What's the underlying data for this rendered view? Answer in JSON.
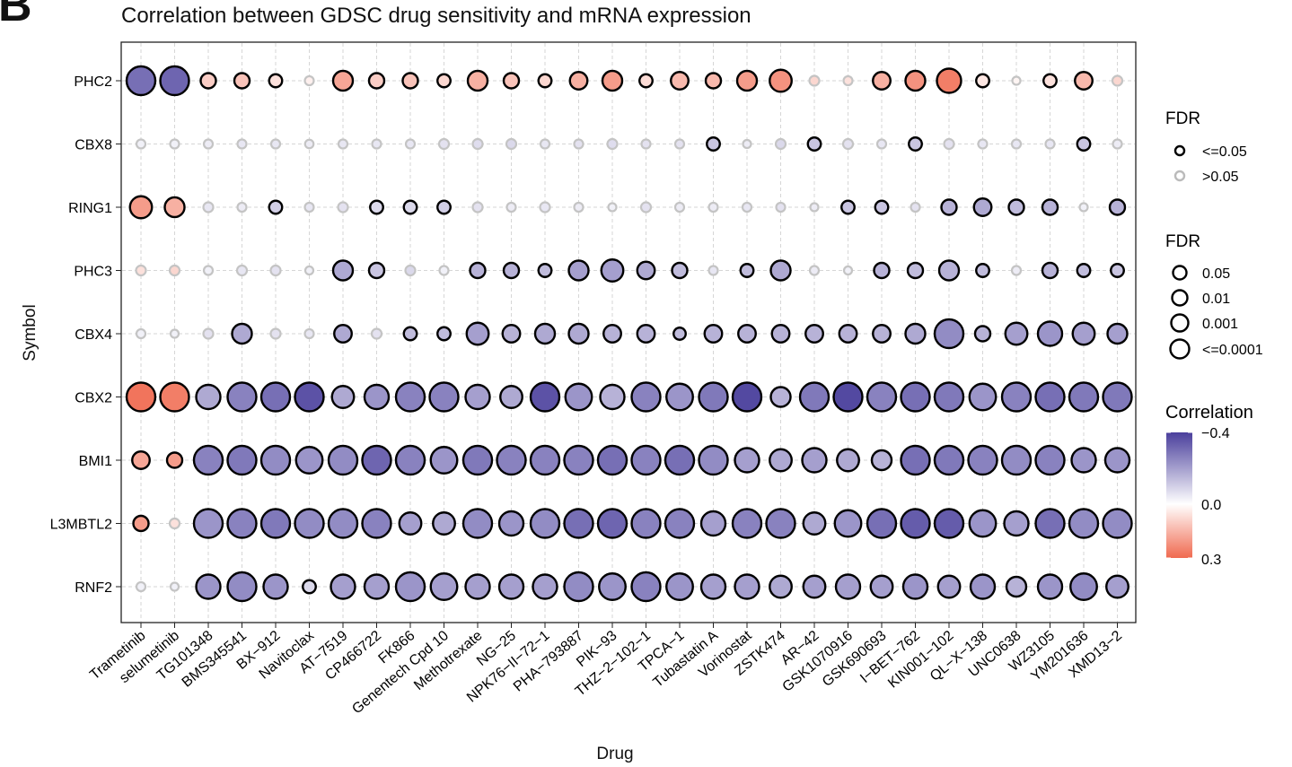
{
  "panel_letter": "B",
  "chart_data": {
    "type": "dot",
    "title": "Correlation between GDSC drug sensitivity and mRNA expression",
    "xlabel": "Drug",
    "ylabel": "Symbol",
    "drugs": [
      "Trametinib",
      "selumetinib",
      "TG101348",
      "BMS345541",
      "BX−912",
      "Navitoclax",
      "AT−7519",
      "CP466722",
      "FK866",
      "Genentech Cpd 10",
      "Methotrexate",
      "NG−25",
      "NPK76−II−72−1",
      "PHA−793887",
      "PIK−93",
      "THZ−2−102−1",
      "TPCA−1",
      "Tubastatin A",
      "Vorinostat",
      "ZSTK474",
      "AR−42",
      "GSK1070916",
      "GSK690693",
      "I−BET−762",
      "KIN001−102",
      "QL−X−138",
      "UNC0638",
      "WZ3105",
      "YM201636",
      "XMD13−2"
    ],
    "symbols": [
      "PHC2",
      "CBX8",
      "RING1",
      "PHC3",
      "CBX4",
      "CBX2",
      "BMI1",
      "L3MBTL2",
      "RNF2"
    ],
    "legend_fdr_color": {
      "title": "FDR",
      "items": [
        "<=0.05",
        ">0.05"
      ]
    },
    "legend_fdr_size": {
      "title": "FDR",
      "items": [
        "0.05",
        "0.01",
        "0.001",
        "<=0.0001"
      ]
    },
    "legend_corr": {
      "title": "Correlation",
      "ticks": [
        "−0.4",
        "0.0",
        "0.3"
      ],
      "low_color": "#4a3f9c",
      "mid_color": "#ffffff",
      "high_color": "#f06a50"
    },
    "cor": {
      "PHC2": [
        -0.3,
        -0.32,
        0.1,
        0.12,
        0.06,
        0.03,
        0.18,
        0.1,
        0.12,
        0.08,
        0.16,
        0.12,
        0.08,
        0.16,
        0.2,
        0.07,
        0.14,
        0.14,
        0.2,
        0.22,
        0.08,
        0.06,
        0.16,
        0.22,
        0.26,
        0.05,
        0.02,
        0.06,
        0.14,
        0.08
      ],
      "CBX8": [
        -0.03,
        -0.03,
        -0.04,
        -0.05,
        -0.05,
        -0.04,
        -0.05,
        -0.05,
        -0.05,
        -0.06,
        -0.07,
        -0.08,
        -0.05,
        -0.06,
        -0.07,
        -0.06,
        -0.06,
        -0.12,
        -0.04,
        -0.08,
        -0.12,
        -0.06,
        -0.05,
        -0.12,
        -0.06,
        -0.05,
        -0.05,
        -0.05,
        -0.12,
        -0.04
      ],
      "RING1": [
        0.2,
        0.16,
        -0.05,
        -0.04,
        -0.1,
        -0.05,
        -0.06,
        -0.08,
        -0.08,
        -0.1,
        -0.06,
        -0.04,
        -0.05,
        -0.04,
        -0.03,
        -0.06,
        -0.04,
        -0.04,
        -0.05,
        -0.06,
        -0.04,
        -0.12,
        -0.12,
        -0.06,
        -0.16,
        -0.18,
        -0.14,
        -0.16,
        -0.03,
        -0.16
      ],
      "PHC3": [
        0.06,
        0.08,
        -0.03,
        -0.05,
        -0.06,
        -0.03,
        -0.18,
        -0.12,
        -0.08,
        -0.03,
        -0.16,
        -0.16,
        -0.14,
        -0.2,
        -0.2,
        -0.18,
        -0.14,
        -0.05,
        -0.14,
        -0.18,
        -0.04,
        -0.03,
        -0.16,
        -0.14,
        -0.16,
        -0.14,
        -0.04,
        -0.16,
        -0.14,
        -0.12
      ],
      "CBX4": [
        -0.03,
        -0.03,
        -0.06,
        -0.18,
        -0.06,
        -0.05,
        -0.18,
        -0.06,
        -0.14,
        -0.14,
        -0.2,
        -0.16,
        -0.18,
        -0.18,
        -0.16,
        -0.16,
        -0.14,
        -0.16,
        -0.16,
        -0.16,
        -0.16,
        -0.16,
        -0.16,
        -0.18,
        -0.24,
        -0.16,
        -0.2,
        -0.22,
        -0.2,
        -0.2
      ],
      "CBX2": [
        0.28,
        0.26,
        -0.18,
        -0.26,
        -0.3,
        -0.36,
        -0.18,
        -0.22,
        -0.26,
        -0.26,
        -0.2,
        -0.18,
        -0.36,
        -0.22,
        -0.16,
        -0.26,
        -0.22,
        -0.28,
        -0.38,
        -0.16,
        -0.28,
        -0.38,
        -0.26,
        -0.3,
        -0.28,
        -0.22,
        -0.26,
        -0.3,
        -0.28,
        -0.28
      ],
      "BMI1": [
        0.18,
        0.2,
        -0.26,
        -0.28,
        -0.24,
        -0.22,
        -0.24,
        -0.32,
        -0.26,
        -0.22,
        -0.28,
        -0.26,
        -0.26,
        -0.26,
        -0.3,
        -0.26,
        -0.3,
        -0.24,
        -0.2,
        -0.18,
        -0.2,
        -0.18,
        -0.16,
        -0.3,
        -0.28,
        -0.26,
        -0.24,
        -0.26,
        -0.22,
        -0.22
      ],
      "L3MBTL2": [
        0.2,
        0.06,
        -0.22,
        -0.26,
        -0.28,
        -0.24,
        -0.24,
        -0.26,
        -0.2,
        -0.18,
        -0.24,
        -0.22,
        -0.24,
        -0.3,
        -0.32,
        -0.26,
        -0.26,
        -0.2,
        -0.26,
        -0.26,
        -0.18,
        -0.22,
        -0.3,
        -0.34,
        -0.34,
        -0.22,
        -0.2,
        -0.3,
        -0.24,
        -0.24
      ],
      "RNF2": [
        -0.03,
        -0.03,
        -0.22,
        -0.24,
        -0.22,
        -0.08,
        -0.2,
        -0.2,
        -0.22,
        -0.2,
        -0.2,
        -0.2,
        -0.2,
        -0.24,
        -0.22,
        -0.26,
        -0.22,
        -0.2,
        -0.2,
        -0.18,
        -0.2,
        -0.2,
        -0.2,
        -0.22,
        -0.2,
        -0.22,
        -0.16,
        -0.22,
        -0.24,
        -0.2
      ]
    },
    "neglog10_fdr": {
      "PHC2": [
        5,
        5,
        2,
        2,
        1.5,
        0.6,
        3,
        2,
        2,
        1.5,
        3,
        2,
        1.5,
        2.5,
        3,
        1.5,
        2.5,
        2,
        3,
        3.5,
        0.8,
        0.6,
        2.5,
        3,
        4,
        1.5,
        0.4,
        1.5,
        2.5,
        0.8
      ],
      "CBX8": [
        0.6,
        0.6,
        0.6,
        0.6,
        0.6,
        0.5,
        0.6,
        0.6,
        0.6,
        0.8,
        0.8,
        0.8,
        0.6,
        0.6,
        0.8,
        0.6,
        0.6,
        1.5,
        0.4,
        0.8,
        1.5,
        0.8,
        0.6,
        1.5,
        0.8,
        0.6,
        0.6,
        0.6,
        1.5,
        0.6
      ],
      "RING1": [
        3.5,
        3,
        0.8,
        0.6,
        1.5,
        0.6,
        0.8,
        1.5,
        1.5,
        1.5,
        0.8,
        0.6,
        0.8,
        0.6,
        0.4,
        0.8,
        0.6,
        0.6,
        0.6,
        0.6,
        0.4,
        1.5,
        1.5,
        0.6,
        2,
        2.5,
        2,
        2,
        0.4,
        2
      ],
      "PHC3": [
        0.8,
        0.8,
        0.6,
        0.8,
        0.8,
        0.4,
        3,
        2,
        0.8,
        0.6,
        2,
        2,
        1.5,
        3,
        3.5,
        2.5,
        2,
        0.6,
        1.5,
        3,
        0.6,
        0.4,
        2,
        2,
        3,
        1.5,
        0.6,
        2,
        1.5,
        1.5
      ],
      "CBX4": [
        0.6,
        0.4,
        0.8,
        3,
        0.8,
        0.6,
        2.5,
        0.8,
        1.5,
        1.5,
        3.5,
        2.5,
        3,
        3,
        2.5,
        2.5,
        1.3,
        2.5,
        2.5,
        2.5,
        2.5,
        2.5,
        2.5,
        3,
        5,
        2,
        3.5,
        4,
        3.5,
        3
      ],
      "CBX2": [
        5,
        5,
        4,
        5,
        5,
        5,
        3.5,
        4,
        5,
        5,
        4,
        3.5,
        5,
        4.5,
        4,
        5,
        4.5,
        5,
        5,
        3,
        5,
        5,
        5,
        5,
        5,
        4.5,
        5,
        5,
        5,
        5
      ],
      "BMI1": [
        2.5,
        2,
        5,
        5,
        5,
        4.5,
        5,
        5,
        5,
        4.5,
        5,
        5,
        5,
        5,
        5,
        5,
        5,
        5,
        4,
        3.5,
        4,
        3.5,
        3,
        5,
        5,
        5,
        5,
        5,
        4,
        4
      ],
      "L3MBTL2": [
        2,
        0.8,
        5,
        5,
        5,
        5,
        5,
        5,
        3.5,
        3.5,
        5,
        4,
        5,
        5,
        5,
        5,
        5,
        4,
        5,
        5,
        3.5,
        4.5,
        5,
        5,
        5,
        4.5,
        4,
        5,
        5,
        5
      ],
      "RNF2": [
        0.6,
        0.4,
        4,
        5,
        4,
        1.5,
        4,
        4,
        5,
        4.5,
        4,
        4,
        4,
        5,
        4.5,
        5,
        4.5,
        4,
        4,
        3.5,
        3.5,
        4,
        3.5,
        4,
        3.5,
        4,
        3,
        4,
        4.5,
        3.5
      ]
    },
    "significant": {
      "PHC2": [
        1,
        1,
        1,
        1,
        1,
        0,
        1,
        1,
        1,
        1,
        1,
        1,
        1,
        1,
        1,
        1,
        1,
        1,
        1,
        1,
        0,
        0,
        1,
        1,
        1,
        1,
        0,
        1,
        1,
        0
      ],
      "CBX8": [
        0,
        0,
        0,
        0,
        0,
        0,
        0,
        0,
        0,
        0,
        0,
        0,
        0,
        0,
        0,
        0,
        0,
        1,
        0,
        0,
        1,
        0,
        0,
        1,
        0,
        0,
        0,
        0,
        1,
        0
      ],
      "RING1": [
        1,
        1,
        0,
        0,
        1,
        0,
        0,
        1,
        1,
        1,
        0,
        0,
        0,
        0,
        0,
        0,
        0,
        0,
        0,
        0,
        0,
        1,
        1,
        0,
        1,
        1,
        1,
        1,
        0,
        1
      ],
      "PHC3": [
        0,
        0,
        0,
        0,
        0,
        0,
        1,
        1,
        0,
        0,
        1,
        1,
        1,
        1,
        1,
        1,
        1,
        0,
        1,
        1,
        0,
        0,
        1,
        1,
        1,
        1,
        0,
        1,
        1,
        1
      ],
      "CBX4": [
        0,
        0,
        0,
        1,
        0,
        0,
        1,
        0,
        1,
        1,
        1,
        1,
        1,
        1,
        1,
        1,
        1,
        1,
        1,
        1,
        1,
        1,
        1,
        1,
        1,
        1,
        1,
        1,
        1,
        1
      ],
      "CBX2": [
        1,
        1,
        1,
        1,
        1,
        1,
        1,
        1,
        1,
        1,
        1,
        1,
        1,
        1,
        1,
        1,
        1,
        1,
        1,
        1,
        1,
        1,
        1,
        1,
        1,
        1,
        1,
        1,
        1,
        1
      ],
      "BMI1": [
        1,
        1,
        1,
        1,
        1,
        1,
        1,
        1,
        1,
        1,
        1,
        1,
        1,
        1,
        1,
        1,
        1,
        1,
        1,
        1,
        1,
        1,
        1,
        1,
        1,
        1,
        1,
        1,
        1,
        1
      ],
      "L3MBTL2": [
        1,
        0,
        1,
        1,
        1,
        1,
        1,
        1,
        1,
        1,
        1,
        1,
        1,
        1,
        1,
        1,
        1,
        1,
        1,
        1,
        1,
        1,
        1,
        1,
        1,
        1,
        1,
        1,
        1,
        1
      ],
      "RNF2": [
        0,
        0,
        1,
        1,
        1,
        1,
        1,
        1,
        1,
        1,
        1,
        1,
        1,
        1,
        1,
        1,
        1,
        1,
        1,
        1,
        1,
        1,
        1,
        1,
        1,
        1,
        1,
        1,
        1,
        1
      ]
    }
  }
}
